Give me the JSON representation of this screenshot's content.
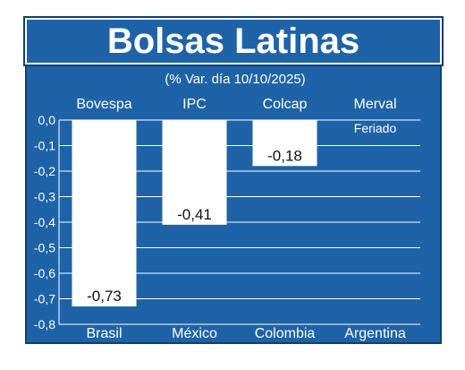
{
  "title": "Bolsas Latinas",
  "subtitle": "(% Var. día 10/10/2025)",
  "colors": {
    "background": "#1e63a8",
    "bar": "#ffffff",
    "text": "#ffffff",
    "grid": "#ffffff"
  },
  "chart_data": {
    "type": "bar",
    "title": "Bolsas Latinas",
    "subtitle": "(% Var. día 10/10/2025)",
    "indices": [
      "Bovespa",
      "IPC",
      "Colcap",
      "Merval"
    ],
    "categories": [
      "Brasil",
      "México",
      "Colombia",
      "Argentina"
    ],
    "values": [
      -0.73,
      -0.41,
      -0.18,
      null
    ],
    "value_labels": [
      "-0,73",
      "-0,41",
      "-0,18",
      ""
    ],
    "notes": [
      "",
      "",
      "",
      "Feriado"
    ],
    "ylim": [
      -0.8,
      0.0
    ],
    "yticks": [
      "0,0",
      "-0,1",
      "-0,2",
      "-0,3",
      "-0,4",
      "-0,5",
      "-0,6",
      "-0,7",
      "-0,8"
    ],
    "ytick_values": [
      0,
      -0.1,
      -0.2,
      -0.3,
      -0.4,
      -0.5,
      -0.6,
      -0.7,
      -0.8
    ],
    "grid": true
  }
}
